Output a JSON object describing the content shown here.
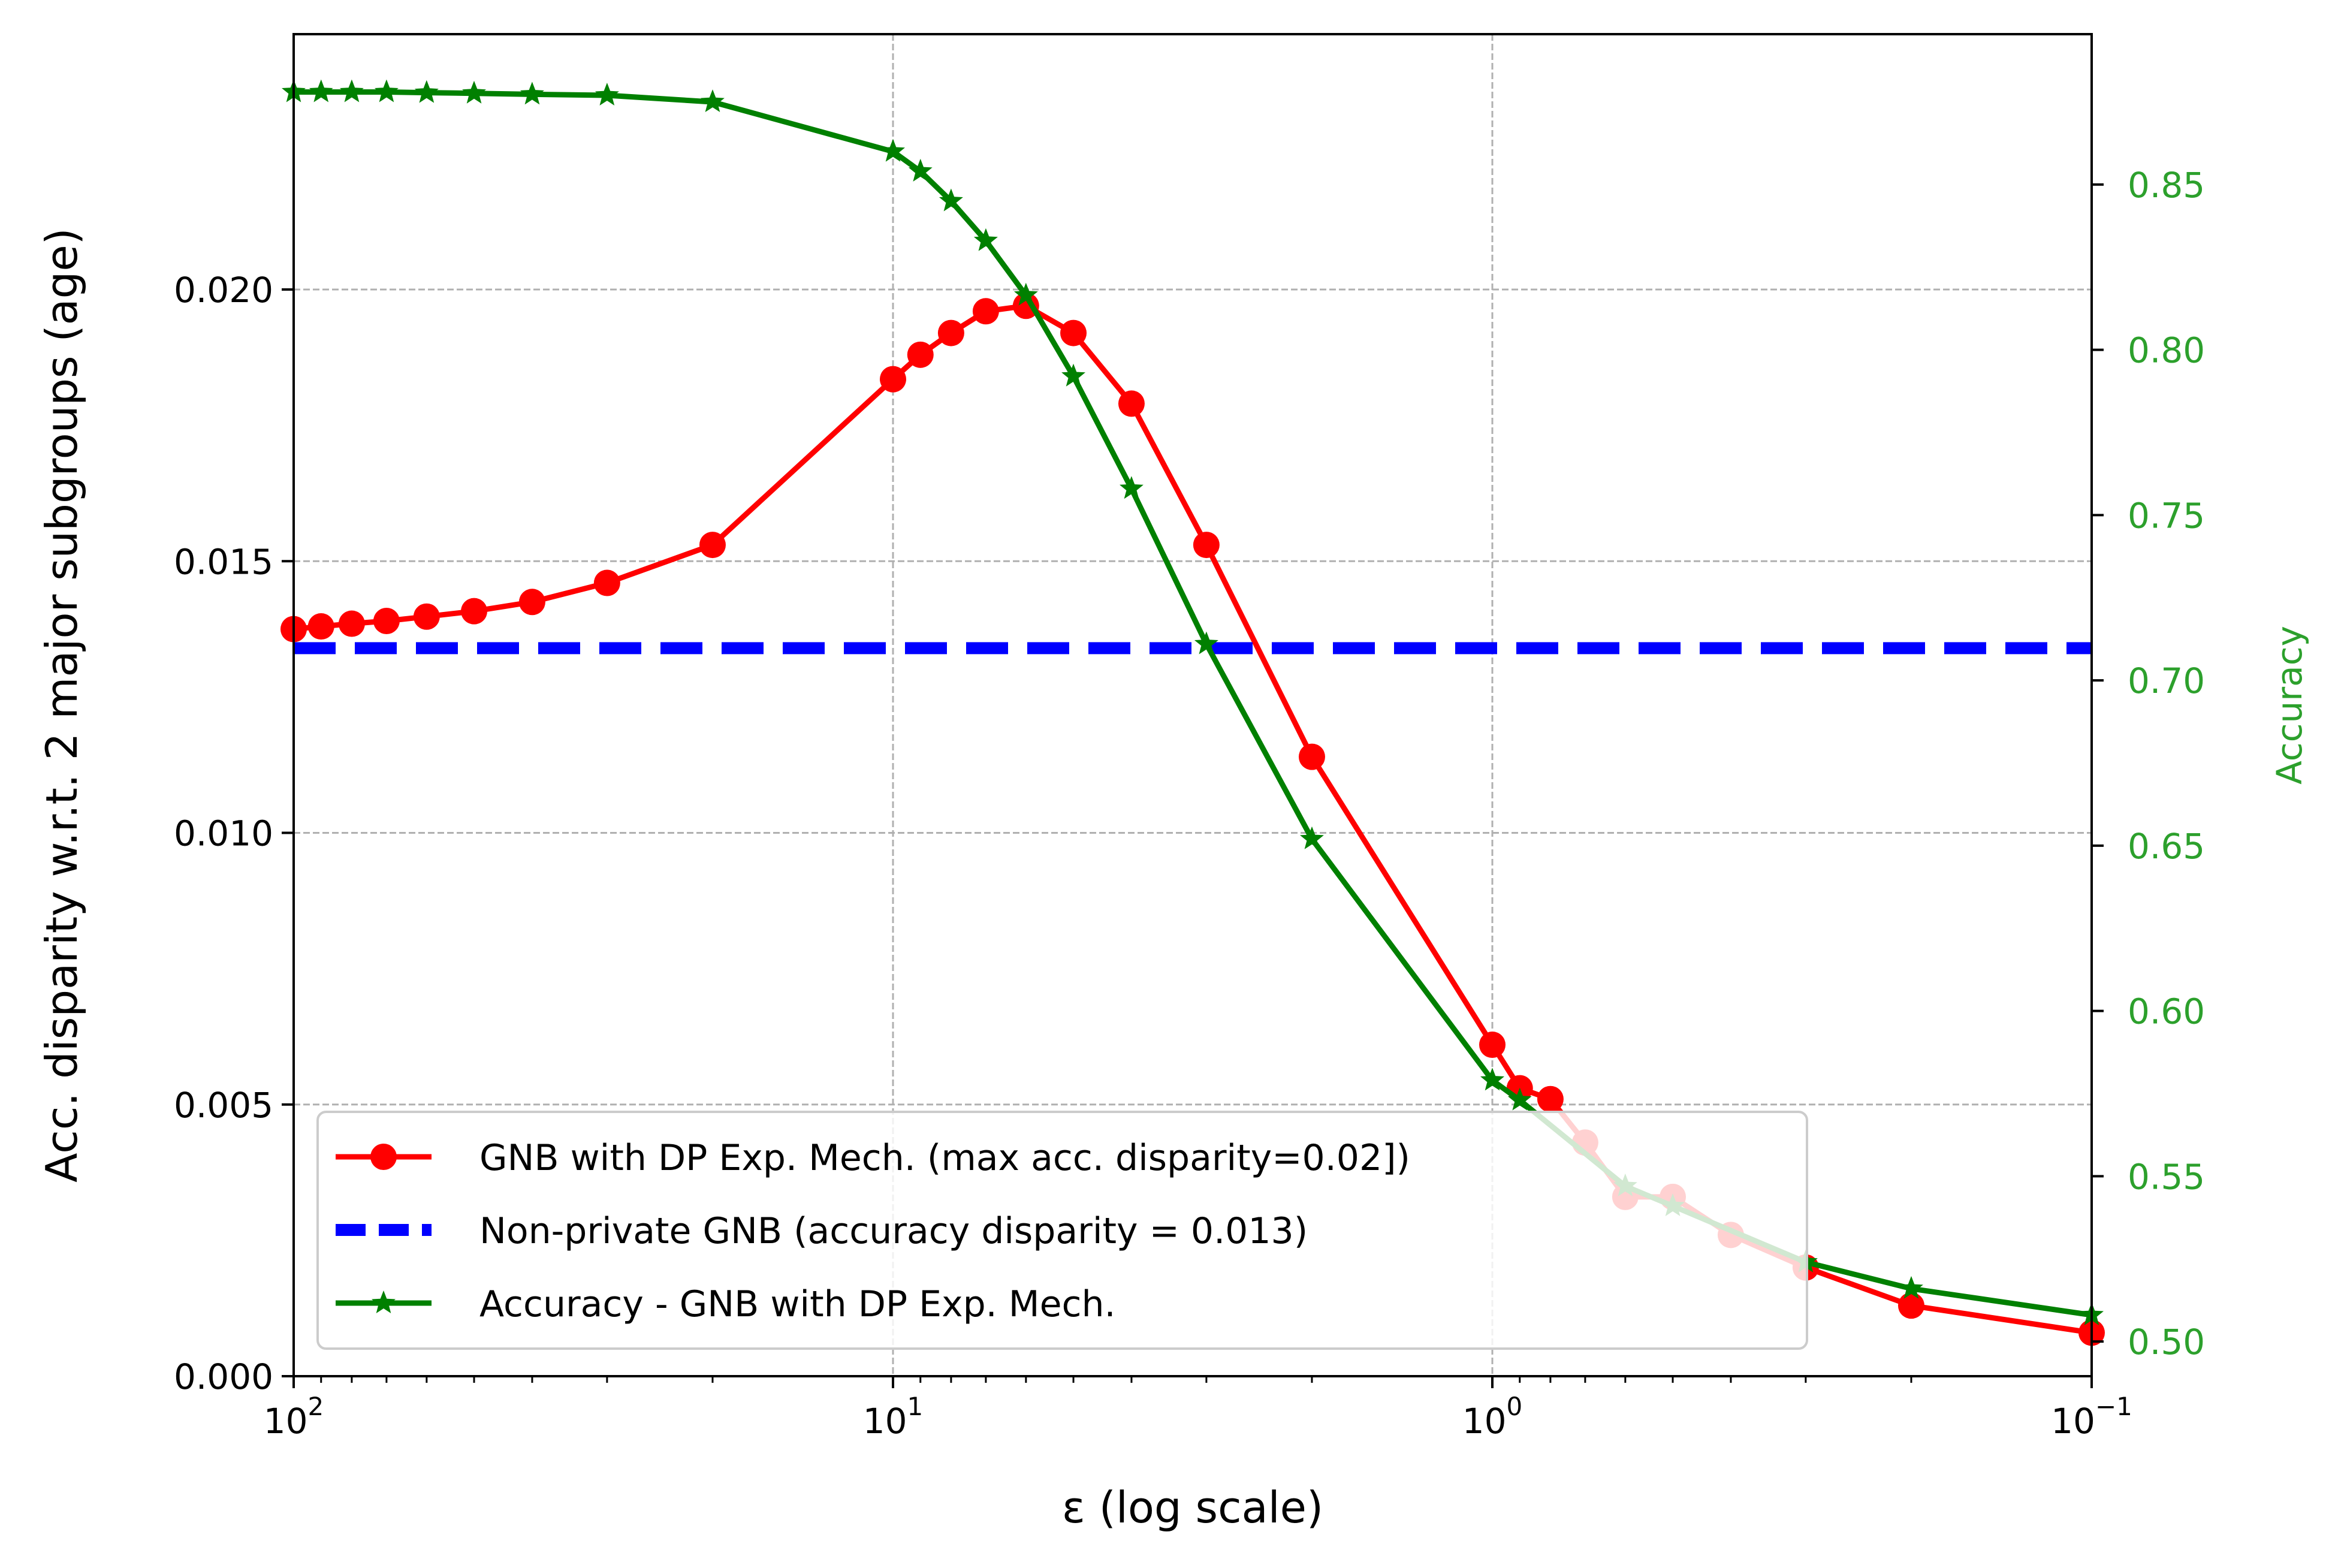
{
  "chart_data": {
    "type": "line",
    "xlabel": "ε (log scale)",
    "xscale": "log",
    "xlim": [
      100,
      0.1
    ],
    "x_ticks": [
      {
        "value": 100,
        "base": "10",
        "exp": "2"
      },
      {
        "value": 10,
        "base": "10",
        "exp": "1"
      },
      {
        "value": 1,
        "base": "10",
        "exp": "0"
      },
      {
        "value": 0.1,
        "base": "10",
        "exp": "−1"
      }
    ],
    "ylabel_left": "Acc. disparity w.r.t. 2 major subgroups (age)",
    "ylim_left": [
      0,
      0.0247
    ],
    "y_ticks_left": [
      "0.000",
      "0.005",
      "0.010",
      "0.015",
      "0.020"
    ],
    "ylabel_right": "Accuracy",
    "ylim_right": [
      0.4895,
      0.8955
    ],
    "y_ticks_right": [
      "0.50",
      "0.55",
      "0.60",
      "0.65",
      "0.70",
      "0.75",
      "0.80",
      "0.85"
    ],
    "grid": true,
    "legend_position": "lower-left",
    "colors": {
      "disparity": "#ff0000",
      "baseline": "#0000ff",
      "accuracy": "#008000",
      "right_axis": "#2ca02c"
    },
    "series": [
      {
        "name": "GNB with DP Exp. Mech. (max acc. disparity=0.02])",
        "axis": "left",
        "marker": "circle",
        "x": [
          100,
          90,
          80,
          70,
          60,
          50,
          40,
          30,
          20,
          10,
          9,
          8,
          7,
          6,
          5,
          4,
          3,
          2,
          1,
          0.9,
          0.8,
          0.7,
          0.6,
          0.5,
          0.4,
          0.3,
          0.2,
          0.1
        ],
        "values": [
          0.01375,
          0.0138,
          0.01385,
          0.0139,
          0.01398,
          0.01408,
          0.01425,
          0.0146,
          0.0153,
          0.01835,
          0.0188,
          0.0192,
          0.0196,
          0.0197,
          0.0192,
          0.0179,
          0.0153,
          0.0114,
          0.0061,
          0.0053,
          0.0051,
          0.0043,
          0.0033,
          0.0033,
          0.0026,
          0.002,
          0.0013,
          0.0008
        ]
      },
      {
        "name": "Non-private GNB (accuracy disparity = 0.013)",
        "axis": "left",
        "style": "dashed",
        "x": [
          100,
          0.1
        ],
        "values": [
          0.0134,
          0.0134
        ]
      },
      {
        "name": "Accuracy - GNB with DP Exp. Mech.",
        "axis": "right",
        "marker": "star",
        "x": [
          100,
          90,
          80,
          70,
          60,
          50,
          40,
          30,
          20,
          10,
          9,
          8,
          7,
          6,
          5,
          4,
          3,
          2,
          1,
          0.9,
          0.6,
          0.5,
          0.3,
          0.2,
          0.1
        ],
        "values": [
          0.878,
          0.878,
          0.878,
          0.878,
          0.8778,
          0.8776,
          0.8773,
          0.877,
          0.875,
          0.86,
          0.854,
          0.845,
          0.833,
          0.8165,
          0.792,
          0.758,
          0.711,
          0.652,
          0.579,
          0.573,
          0.547,
          0.541,
          0.524,
          0.516,
          0.508
        ]
      }
    ]
  }
}
